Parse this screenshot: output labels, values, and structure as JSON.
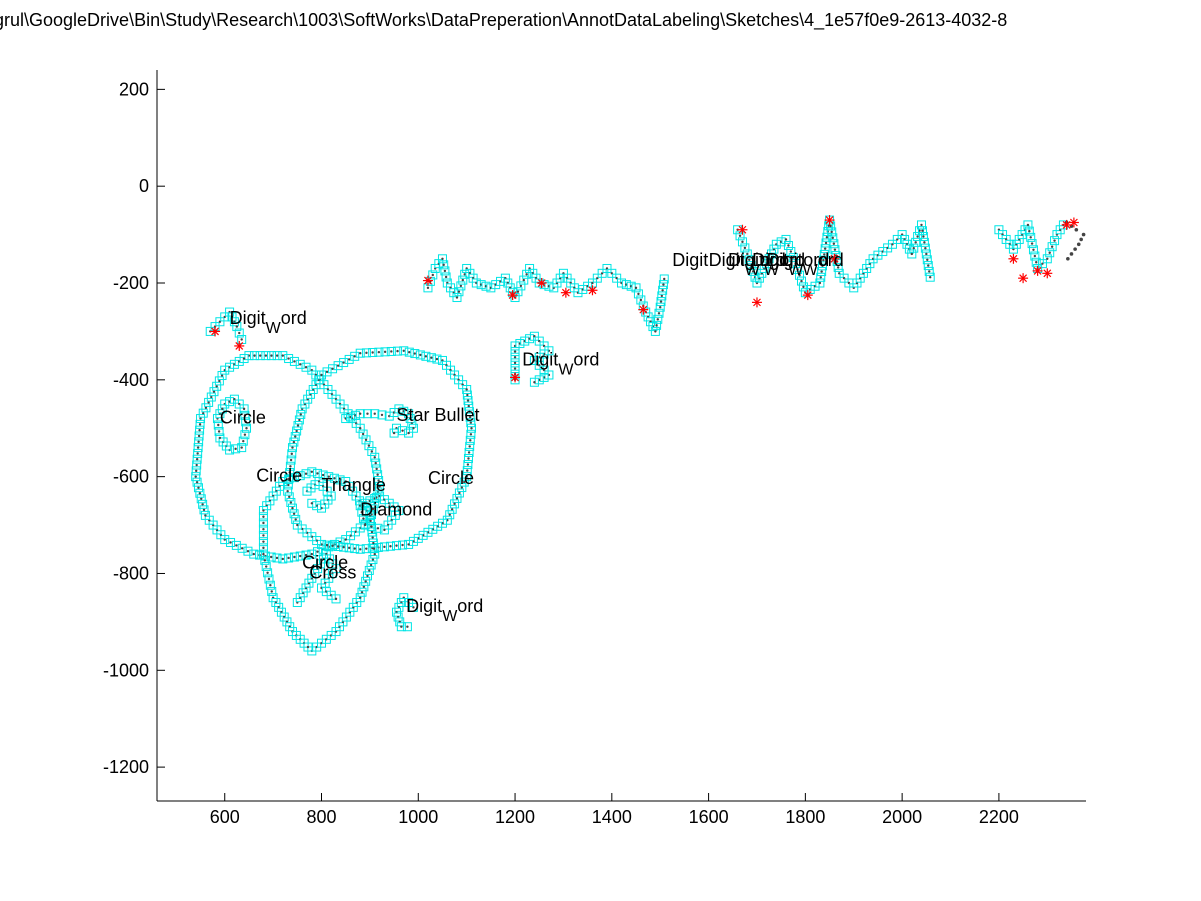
{
  "figure": {
    "title": "grul\\GoogleDrive\\Bin\\Study\\Research\\1003\\SoftWorks\\DataPreperation\\AnnotDataLabeling\\Sketches\\4_1e57f0e9-2613-4032-8"
  },
  "chart_data": {
    "type": "scatter",
    "title": "grul\\GoogleDrive\\Bin\\Study\\Research\\1003\\SoftWorks\\DataPreperation\\AnnotDataLabeling\\Sketches\\4_1e57f0e9-2613-4032-8",
    "xlabel": "",
    "ylabel": "",
    "xlim": [
      460,
      2380
    ],
    "ylim": [
      -1270,
      240
    ],
    "x_ticks": [
      600,
      800,
      1000,
      1200,
      1400,
      1600,
      1800,
      2000,
      2200
    ],
    "y_ticks": [
      200,
      0,
      -200,
      -400,
      -600,
      -800,
      -1000,
      -1200
    ],
    "grid": false,
    "legend": "none",
    "colors": {
      "point_marker": "#00e5e5",
      "stroke_dot": "#444444",
      "corner_marker": "#ff0000",
      "axis": "#000000"
    },
    "markers": {
      "segment_points": "cyan-square",
      "stroke_points": "dark-dot",
      "corner_points": "red-asterisk"
    },
    "strokes": [
      {
        "id": "text-ink-1",
        "points": [
          [
            1020,
            -210
          ],
          [
            1035,
            -170
          ],
          [
            1050,
            -150
          ],
          [
            1060,
            -200
          ],
          [
            1080,
            -230
          ],
          [
            1100,
            -170
          ],
          [
            1120,
            -200
          ],
          [
            1150,
            -210
          ],
          [
            1180,
            -190
          ],
          [
            1200,
            -230
          ],
          [
            1230,
            -170
          ],
          [
            1250,
            -200
          ],
          [
            1280,
            -210
          ],
          [
            1300,
            -180
          ],
          [
            1330,
            -220
          ],
          [
            1360,
            -200
          ],
          [
            1390,
            -170
          ],
          [
            1420,
            -200
          ],
          [
            1450,
            -210
          ],
          [
            1470,
            -260
          ],
          [
            1490,
            -300
          ],
          [
            1500,
            -250
          ],
          [
            1510,
            -180
          ]
        ]
      },
      {
        "id": "text-ink-2",
        "points": [
          [
            1660,
            -90
          ],
          [
            1680,
            -140
          ],
          [
            1700,
            -200
          ],
          [
            1720,
            -160
          ],
          [
            1740,
            -120
          ],
          [
            1760,
            -110
          ],
          [
            1780,
            -160
          ],
          [
            1800,
            -220
          ],
          [
            1830,
            -200
          ],
          [
            1850,
            -70
          ],
          [
            1870,
            -180
          ],
          [
            1900,
            -210
          ],
          [
            1940,
            -150
          ],
          [
            1980,
            -120
          ],
          [
            2000,
            -100
          ],
          [
            2020,
            -140
          ],
          [
            2040,
            -80
          ],
          [
            2060,
            -200
          ]
        ]
      },
      {
        "id": "text-ink-3",
        "points": [
          [
            2200,
            -90
          ],
          [
            2230,
            -130
          ],
          [
            2260,
            -80
          ],
          [
            2280,
            -170
          ],
          [
            2300,
            -150
          ],
          [
            2320,
            -100
          ],
          [
            2340,
            -70
          ]
        ]
      },
      {
        "id": "tail",
        "points": [
          [
            2340,
            -75
          ],
          [
            2360,
            -90
          ],
          [
            2375,
            -100
          ],
          [
            2365,
            -120
          ],
          [
            2350,
            -140
          ],
          [
            2335,
            -160
          ]
        ]
      },
      {
        "id": "digit-1",
        "points": [
          [
            570,
            -300
          ],
          [
            590,
            -280
          ],
          [
            610,
            -260
          ],
          [
            625,
            -290
          ],
          [
            640,
            -330
          ]
        ]
      },
      {
        "id": "digit-2",
        "points": [
          [
            1200,
            -400
          ],
          [
            1200,
            -330
          ],
          [
            1240,
            -310
          ],
          [
            1270,
            -340
          ],
          [
            1240,
            -360
          ],
          [
            1270,
            -390
          ],
          [
            1230,
            -410
          ]
        ]
      },
      {
        "id": "digit-3",
        "points": [
          [
            990,
            -870
          ],
          [
            970,
            -850
          ],
          [
            955,
            -880
          ],
          [
            965,
            -910
          ],
          [
            990,
            -910
          ]
        ]
      },
      {
        "id": "big-heart",
        "points": [
          [
            650,
            -350
          ],
          [
            720,
            -350
          ],
          [
            780,
            -380
          ],
          [
            830,
            -440
          ],
          [
            880,
            -500
          ],
          [
            910,
            -560
          ],
          [
            920,
            -620
          ],
          [
            900,
            -690
          ],
          [
            850,
            -730
          ],
          [
            780,
            -760
          ],
          [
            720,
            -770
          ],
          [
            660,
            -760
          ],
          [
            600,
            -730
          ],
          [
            560,
            -680
          ],
          [
            540,
            -600
          ],
          [
            550,
            -480
          ],
          [
            600,
            -380
          ],
          [
            650,
            -350
          ]
        ]
      },
      {
        "id": "circle-ring",
        "points": [
          [
            760,
            -460
          ],
          [
            800,
            -390
          ],
          [
            880,
            -345
          ],
          [
            970,
            -340
          ],
          [
            1050,
            -360
          ],
          [
            1100,
            -420
          ],
          [
            1110,
            -500
          ],
          [
            1100,
            -600
          ],
          [
            1060,
            -690
          ],
          [
            980,
            -740
          ],
          [
            880,
            -750
          ],
          [
            800,
            -740
          ],
          [
            750,
            -700
          ],
          [
            730,
            -630
          ],
          [
            740,
            -540
          ],
          [
            760,
            -460
          ]
        ]
      },
      {
        "id": "lower-heart",
        "points": [
          [
            780,
            -960
          ],
          [
            830,
            -920
          ],
          [
            880,
            -850
          ],
          [
            910,
            -760
          ],
          [
            900,
            -680
          ],
          [
            850,
            -610
          ],
          [
            780,
            -590
          ],
          [
            720,
            -610
          ],
          [
            680,
            -670
          ],
          [
            680,
            -760
          ],
          [
            700,
            -850
          ],
          [
            740,
            -920
          ],
          [
            780,
            -960
          ]
        ]
      },
      {
        "id": "small-circle",
        "points": [
          [
            600,
            -450
          ],
          [
            620,
            -440
          ],
          [
            640,
            -460
          ],
          [
            645,
            -500
          ],
          [
            635,
            -540
          ],
          [
            610,
            -545
          ],
          [
            590,
            -520
          ],
          [
            585,
            -480
          ],
          [
            600,
            -450
          ]
        ]
      },
      {
        "id": "star-bullet",
        "points": [
          [
            850,
            -480
          ],
          [
            880,
            -470
          ],
          [
            910,
            -470
          ],
          [
            940,
            -475
          ],
          [
            960,
            -460
          ],
          [
            980,
            -470
          ],
          [
            990,
            -500
          ],
          [
            980,
            -510
          ],
          [
            955,
            -500
          ],
          [
            945,
            -520
          ]
        ]
      },
      {
        "id": "triangle",
        "points": [
          [
            770,
            -630
          ],
          [
            795,
            -610
          ],
          [
            820,
            -640
          ],
          [
            800,
            -665
          ],
          [
            770,
            -650
          ]
        ]
      },
      {
        "id": "diamond",
        "points": [
          [
            880,
            -660
          ],
          [
            920,
            -640
          ],
          [
            960,
            -670
          ],
          [
            930,
            -710
          ],
          [
            890,
            -700
          ],
          [
            880,
            -660
          ]
        ]
      },
      {
        "id": "cross",
        "points": [
          [
            750,
            -860
          ],
          [
            780,
            -810
          ],
          [
            810,
            -760
          ],
          [
            830,
            -790
          ],
          [
            800,
            -830
          ],
          [
            840,
            -860
          ]
        ]
      }
    ],
    "corner_points": [
      [
        580,
        -300
      ],
      [
        630,
        -330
      ],
      [
        1020,
        -195
      ],
      [
        1195,
        -225
      ],
      [
        1255,
        -200
      ],
      [
        1305,
        -220
      ],
      [
        1360,
        -215
      ],
      [
        1465,
        -255
      ],
      [
        1200,
        -395
      ],
      [
        1670,
        -90
      ],
      [
        1700,
        -240
      ],
      [
        1805,
        -225
      ],
      [
        1850,
        -70
      ],
      [
        1860,
        -150
      ],
      [
        2230,
        -150
      ],
      [
        2250,
        -190
      ],
      [
        2280,
        -175
      ],
      [
        2300,
        -180
      ],
      [
        2340,
        -80
      ],
      [
        2355,
        -75
      ]
    ],
    "annotations": [
      {
        "label": "Digit",
        "sub": "W",
        "suffix": "ord",
        "x": 610,
        "y": -285
      },
      {
        "label": "Digit",
        "sub": "W",
        "suffix": "ord",
        "x": 1215,
        "y": -370
      },
      {
        "label": "Digit",
        "sub": "W",
        "suffix": "ord",
        "x": 975,
        "y": -880
      },
      {
        "label": "Circle",
        "x": 590,
        "y": -490
      },
      {
        "label": "Star Bullet",
        "x": 955,
        "y": -485
      },
      {
        "label": "Circle",
        "x": 665,
        "y": -610
      },
      {
        "label": "Triangle",
        "x": 800,
        "y": -630
      },
      {
        "label": "Circle",
        "x": 1020,
        "y": -615
      },
      {
        "label": "Diamond",
        "x": 880,
        "y": -680
      },
      {
        "label": "Circle",
        "x": 760,
        "y": -790
      },
      {
        "label": "Cross",
        "x": 775,
        "y": -810
      },
      {
        "label": "Digit",
        "x": 1525,
        "y": -165
      },
      {
        "label": "Digit",
        "sub": "W",
        "suffix": "ord",
        "x": 1600,
        "y": -165
      },
      {
        "label": "Digit",
        "sub": "W",
        "suffix": "ord",
        "x": 1640,
        "y": -165
      },
      {
        "label": "Digit",
        "sub": "W",
        "suffix": "ord",
        "x": 1690,
        "y": -165
      },
      {
        "label": "Digit",
        "sub": "W",
        "suffix": "ord",
        "x": 1720,
        "y": -165
      }
    ]
  }
}
